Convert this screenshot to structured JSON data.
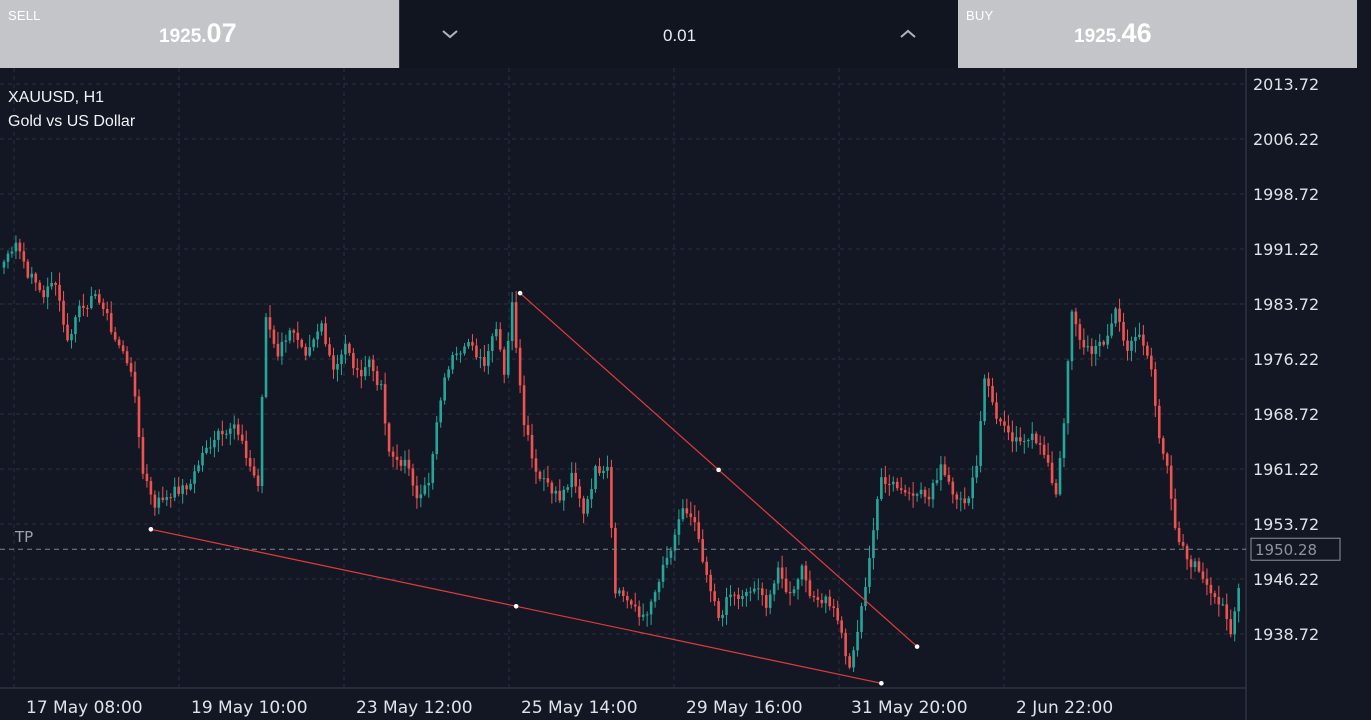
{
  "trade_panel": {
    "sell": {
      "label": "SELL",
      "price_small": "1925.",
      "price_big": "07"
    },
    "buy": {
      "label": "BUY",
      "price_small": "1925.",
      "price_big": "46"
    },
    "lot_size": "0.01",
    "decrease_icon": "chevron-down-icon",
    "increase_icon": "chevron-up-icon"
  },
  "symbol": {
    "name": "XAUUSD, H1",
    "description": "Gold vs US Dollar"
  },
  "colors": {
    "background": "#121723",
    "bull": "#26a69a",
    "bear": "#ef5350",
    "trendline": "#e03c3c",
    "grid": "#2a3140"
  },
  "take_profit": {
    "label": "TP",
    "price": "1950.28"
  },
  "chart_data": {
    "type": "candlestick",
    "timeframe": "H1",
    "y_ticks": [
      "2013.72",
      "2006.22",
      "1998.72",
      "1991.22",
      "1983.72",
      "1976.22",
      "1968.72",
      "1961.22",
      "1953.72",
      "1946.22",
      "1938.72"
    ],
    "x_ticks": [
      "17 May 08:00",
      "19 May 10:00",
      "23 May 12:00",
      "25 May 14:00",
      "29 May 16:00",
      "31 May 20:00",
      "2 Jun 22:00"
    ],
    "ylim": [
      1931.9,
      2016.0
    ],
    "anchors": [
      [
        0,
        1989.5
      ],
      [
        3,
        1992.5
      ],
      [
        6,
        1988.0
      ],
      [
        10,
        1985.0
      ],
      [
        13,
        1987.0
      ],
      [
        16,
        1978.5
      ],
      [
        19,
        1983.5
      ],
      [
        24,
        1984.5
      ],
      [
        28,
        1979.0
      ],
      [
        32,
        1975.0
      ],
      [
        35,
        1961.0
      ],
      [
        38,
        1956.5
      ],
      [
        42,
        1958.0
      ],
      [
        46,
        1958.5
      ],
      [
        50,
        1963.0
      ],
      [
        54,
        1966.5
      ],
      [
        58,
        1967.0
      ],
      [
        61,
        1963.0
      ],
      [
        64,
        1959.0
      ],
      [
        66,
        1982.0
      ],
      [
        69,
        1977.0
      ],
      [
        72,
        1980.5
      ],
      [
        76,
        1976.0
      ],
      [
        80,
        1981.0
      ],
      [
        83,
        1975.0
      ],
      [
        86,
        1978.0
      ],
      [
        89,
        1974.0
      ],
      [
        92,
        1976.0
      ],
      [
        95,
        1972.0
      ],
      [
        97,
        1963.0
      ],
      [
        101,
        1962.0
      ],
      [
        104,
        1958.0
      ],
      [
        107,
        1959.0
      ],
      [
        110,
        1971.0
      ],
      [
        113,
        1977.5
      ],
      [
        117,
        1978.0
      ],
      [
        121,
        1976.0
      ],
      [
        124,
        1981.0
      ],
      [
        126,
        1974.5
      ],
      [
        128,
        1983.5
      ],
      [
        131,
        1968.0
      ],
      [
        134,
        1961.0
      ],
      [
        137,
        1959.5
      ],
      [
        140,
        1957.0
      ],
      [
        143,
        1960.0
      ],
      [
        146,
        1955.5
      ],
      [
        149,
        1961.0
      ],
      [
        152,
        1962.0
      ],
      [
        154,
        1945.0
      ],
      [
        157,
        1943.5
      ],
      [
        160,
        1941.0
      ],
      [
        163,
        1942.5
      ],
      [
        166,
        1947.5
      ],
      [
        169,
        1951.5
      ],
      [
        171,
        1956.0
      ],
      [
        174,
        1953.5
      ],
      [
        177,
        1946.0
      ],
      [
        180,
        1941.0
      ],
      [
        183,
        1944.0
      ],
      [
        186,
        1943.5
      ],
      [
        189,
        1945.0
      ],
      [
        192,
        1943.0
      ],
      [
        195,
        1947.0
      ],
      [
        198,
        1944.0
      ],
      [
        201,
        1948.0
      ],
      [
        204,
        1943.0
      ],
      [
        207,
        1944.0
      ],
      [
        210,
        1941.0
      ],
      [
        213,
        1933.5
      ],
      [
        216,
        1942.0
      ],
      [
        219,
        1953.0
      ],
      [
        221,
        1960.0
      ],
      [
        224,
        1959.5
      ],
      [
        227,
        1958.0
      ],
      [
        230,
        1958.5
      ],
      [
        233,
        1957.0
      ],
      [
        236,
        1962.0
      ],
      [
        239,
        1958.5
      ],
      [
        242,
        1956.0
      ],
      [
        245,
        1962.0
      ],
      [
        247,
        1974.0
      ],
      [
        250,
        1968.5
      ],
      [
        253,
        1965.5
      ],
      [
        256,
        1964.5
      ],
      [
        259,
        1966.5
      ],
      [
        262,
        1963.0
      ],
      [
        265,
        1958.0
      ],
      [
        267,
        1968.0
      ],
      [
        269,
        1982.5
      ],
      [
        271,
        1978.5
      ],
      [
        274,
        1977.5
      ],
      [
        277,
        1978.0
      ],
      [
        280,
        1983.0
      ],
      [
        283,
        1977.5
      ],
      [
        286,
        1979.5
      ],
      [
        289,
        1975.0
      ],
      [
        291,
        1966.0
      ],
      [
        293,
        1961.0
      ],
      [
        295,
        1952.5
      ],
      [
        298,
        1949.0
      ],
      [
        301,
        1947.5
      ],
      [
        304,
        1945.0
      ],
      [
        307,
        1942.0
      ],
      [
        309,
        1938.5
      ],
      [
        311,
        1945.0
      ]
    ],
    "trendlines": [
      {
        "points": [
          [
            130,
            1985.2
          ],
          [
            230,
            1937.0
          ]
        ],
        "mid_handle": [
          180,
          1961.1
        ]
      },
      {
        "points": [
          [
            37,
            1953.0
          ],
          [
            221,
            1932.0
          ]
        ],
        "mid_handle": [
          129,
          1942.5
        ]
      }
    ]
  }
}
